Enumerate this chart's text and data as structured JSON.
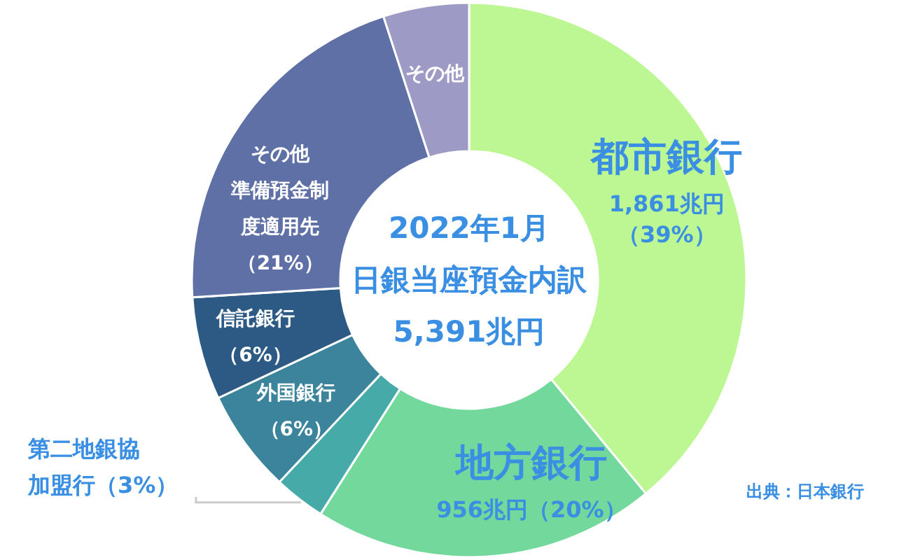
{
  "chart_data": {
    "type": "donut",
    "title": "2022年1月",
    "subtitle": "日銀当座預金内訳",
    "categories": [
      "都市銀行",
      "地方銀行",
      "第二地銀協加盟行",
      "外国銀行",
      "信託銀行",
      "その他準備預金制度適用先",
      "その他"
    ],
    "values": [
      39,
      20,
      3,
      6,
      6,
      21,
      5
    ],
    "value_labels": [
      "1,861兆円（39%）",
      "956兆円（20%）",
      "（3%）",
      "（6%）",
      "（6%）",
      "（21%）",
      null
    ],
    "colors": [
      "#bdf794",
      "#73d89c",
      "#45aaa8",
      "#3b849c",
      "#2c5a84",
      "#5e70a6",
      "#9d9ac6"
    ],
    "annotations": [
      "5,391兆円",
      "出典：日本銀行"
    ]
  }
}
